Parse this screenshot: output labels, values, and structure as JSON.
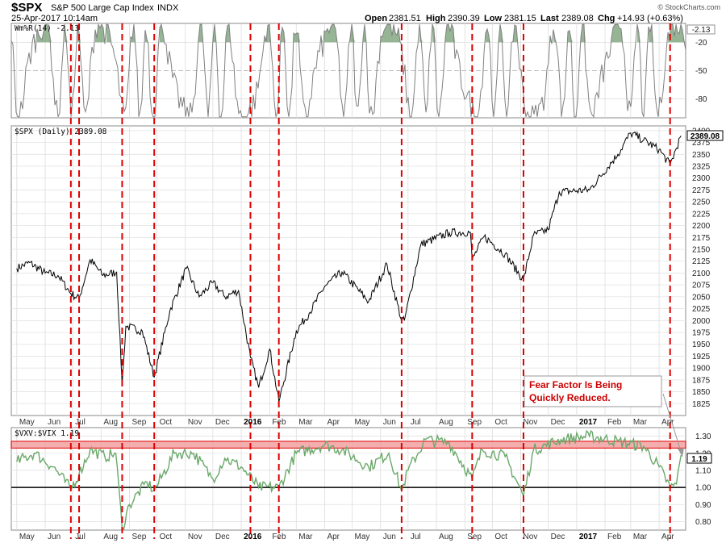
{
  "header": {
    "symbol": "$SPX",
    "name": "S&P 500 Large Cap Index",
    "exchange": "INDX",
    "datetime": "25-Apr-2017 10:14am",
    "open_label": "Open",
    "open": "2381.51",
    "high_label": "High",
    "high": "2390.39",
    "low_label": "Low",
    "low": "2381.15",
    "last_label": "Last",
    "last": "2389.08",
    "chg_label": "Chg",
    "chg": "+14.93 (+0.63%)",
    "watermark": "© StockCharts.com"
  },
  "annotation": {
    "line1": "Fear Factor Is Being",
    "line2": "Quickly Reduced."
  },
  "colors": {
    "price": "#000000",
    "wmr": "#808080",
    "wmr_fill": "#7aa37a",
    "ratio": "#6aa86a",
    "event_line": "#dd0000",
    "band_fill": "#f4a0a0",
    "band_stroke": "#dd0000",
    "annotation": "#cc0000"
  },
  "chart_data": [
    {
      "type": "line",
      "panel": "williams-r",
      "series": [
        {
          "name": "Wm%R(14)",
          "last": -2.13
        }
      ],
      "legend": "Wm%R(14) -2.13",
      "last_label": "-2.13",
      "ylim": [
        -100,
        0
      ],
      "y_ticks": [
        -20,
        -50,
        -80
      ],
      "y_tick_labels": [
        "-20",
        "-50",
        "-80"
      ]
    },
    {
      "type": "line",
      "panel": "price",
      "legend": "$SPX (Daily) 2389.08",
      "last_label": "2389.08",
      "ylim": [
        1800,
        2410
      ],
      "y_ticks": [
        1825,
        1850,
        1875,
        1900,
        1925,
        1950,
        1975,
        2000,
        2025,
        2050,
        2075,
        2100,
        2125,
        2150,
        2175,
        2200,
        2225,
        2250,
        2275,
        2300,
        2325,
        2350,
        2375,
        2400
      ],
      "y_tick_labels": [
        "1825",
        "1850",
        "1875",
        "1900",
        "1925",
        "1950",
        "1975",
        "2000",
        "2025",
        "2050",
        "2075",
        "2100",
        "2125",
        "2150",
        "2175",
        "2200",
        "2225",
        "2250",
        "2275",
        "2300",
        "2325",
        "2350",
        "2375",
        "2400"
      ],
      "series": [
        {
          "name": "$SPX",
          "x": [
            "2015-05-01",
            "2015-05-15",
            "2015-06-01",
            "2015-06-15",
            "2015-06-29",
            "2015-07-08",
            "2015-07-20",
            "2015-08-03",
            "2015-08-18",
            "2015-08-24",
            "2015-08-28",
            "2015-09-15",
            "2015-09-28",
            "2015-10-15",
            "2015-11-02",
            "2015-11-16",
            "2015-12-01",
            "2015-12-14",
            "2015-12-29",
            "2016-01-11",
            "2016-01-20",
            "2016-02-01",
            "2016-02-11",
            "2016-03-01",
            "2016-03-15",
            "2016-04-01",
            "2016-04-20",
            "2016-05-19",
            "2016-06-08",
            "2016-06-24",
            "2016-06-27",
            "2016-07-15",
            "2016-08-15",
            "2016-09-07",
            "2016-09-09",
            "2016-09-22",
            "2016-10-15",
            "2016-11-04",
            "2016-11-15",
            "2016-12-01",
            "2016-12-13",
            "2017-01-15",
            "2017-02-15",
            "2017-03-01",
            "2017-03-15",
            "2017-04-01",
            "2017-04-13",
            "2017-04-25"
          ],
          "values": [
            2110,
            2122,
            2100,
            2095,
            2057,
            2046,
            2128,
            2095,
            2102,
            1867,
            1988,
            1978,
            1881,
            2020,
            2110,
            2050,
            2080,
            2050,
            2063,
            1922,
            1859,
            1940,
            1829,
            1978,
            2015,
            2072,
            2102,
            2040,
            2119,
            2000,
            2000,
            2160,
            2185,
            2186,
            2128,
            2177,
            2140,
            2085,
            2180,
            2191,
            2271,
            2275,
            2350,
            2395,
            2380,
            2360,
            2328,
            2389
          ]
        }
      ]
    },
    {
      "type": "line",
      "panel": "vxv-vix-ratio",
      "legend": "$VXV:$VIX 1.19",
      "last_label": "1.19",
      "ylim": [
        0.75,
        1.35
      ],
      "y_ticks": [
        0.8,
        0.9,
        1.0,
        1.1,
        1.2,
        1.3
      ],
      "y_tick_labels": [
        "0.80",
        "0.90",
        "1.00",
        "1.10",
        "1.20",
        "1.30"
      ],
      "reference_line": 1.0,
      "highlight_band": [
        1.23,
        1.27
      ],
      "series": [
        {
          "name": "$VXV:$VIX",
          "x": [
            "2015-05-01",
            "2015-05-20",
            "2015-06-10",
            "2015-06-29",
            "2015-07-08",
            "2015-07-20",
            "2015-08-05",
            "2015-08-17",
            "2015-08-24",
            "2015-09-01",
            "2015-09-20",
            "2015-09-28",
            "2015-10-20",
            "2015-11-10",
            "2015-12-01",
            "2015-12-14",
            "2016-01-01",
            "2016-01-20",
            "2016-02-11",
            "2016-03-01",
            "2016-04-01",
            "2016-04-20",
            "2016-05-19",
            "2016-06-10",
            "2016-06-24",
            "2016-07-01",
            "2016-07-20",
            "2016-08-15",
            "2016-09-09",
            "2016-09-20",
            "2016-10-15",
            "2016-11-04",
            "2016-11-15",
            "2016-12-15",
            "2017-01-15",
            "2017-02-15",
            "2017-03-15",
            "2017-04-01",
            "2017-04-13",
            "2017-04-20",
            "2017-04-25"
          ],
          "values": [
            1.15,
            1.2,
            1.12,
            0.99,
            1.08,
            1.22,
            1.18,
            1.2,
            0.76,
            0.9,
            1.03,
            0.98,
            1.2,
            1.2,
            1.05,
            1.17,
            1.12,
            1.0,
            1.0,
            1.2,
            1.25,
            1.22,
            1.12,
            1.2,
            0.98,
            1.1,
            1.28,
            1.26,
            1.05,
            1.22,
            1.18,
            0.95,
            1.22,
            1.28,
            1.3,
            1.27,
            1.24,
            1.12,
            1.0,
            1.02,
            1.19
          ]
        }
      ]
    }
  ],
  "x_axis": {
    "labels": [
      "May",
      "Jun",
      "Jul",
      "Aug",
      "Sep",
      "Oct",
      "Nov",
      "Dec",
      "2016",
      "Feb",
      "Mar",
      "Apr",
      "May",
      "Jun",
      "Jul",
      "Aug",
      "Sep",
      "Oct",
      "Nov",
      "Dec",
      "2017",
      "Feb",
      "Mar",
      "Apr"
    ],
    "label_dates": [
      "2015-05-01",
      "2015-06-01",
      "2015-07-01",
      "2015-08-01",
      "2015-09-01",
      "2015-10-01",
      "2015-11-01",
      "2015-12-01",
      "2016-01-01",
      "2016-02-01",
      "2016-03-01",
      "2016-04-01",
      "2016-05-01",
      "2016-06-01",
      "2016-07-01",
      "2016-08-01",
      "2016-09-01",
      "2016-10-01",
      "2016-11-01",
      "2016-12-01",
      "2017-01-01",
      "2017-02-01",
      "2017-03-01",
      "2017-04-01"
    ],
    "year_labels": [
      "2016",
      "2017"
    ],
    "range": [
      "2015-04-25",
      "2017-04-30"
    ]
  },
  "event_dates": [
    "2015-06-29",
    "2015-07-08",
    "2015-08-24",
    "2015-09-28",
    "2016-01-11",
    "2016-02-11",
    "2016-06-24",
    "2016-09-09",
    "2016-11-04",
    "2017-04-13"
  ]
}
